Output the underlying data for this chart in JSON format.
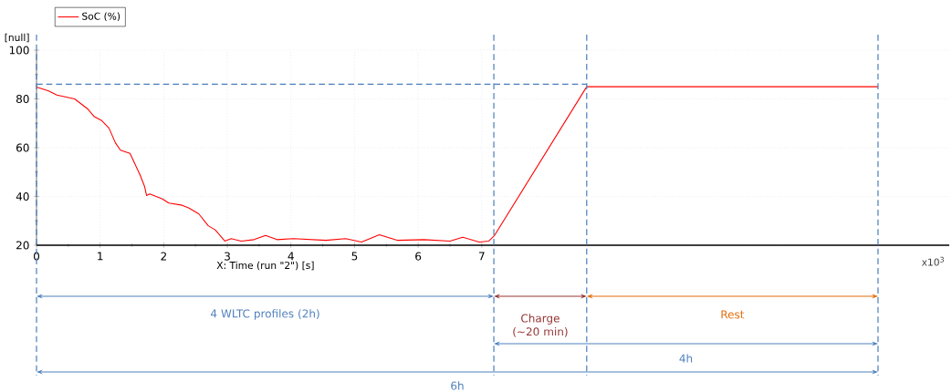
{
  "chart_data": {
    "type": "line",
    "xlabel": "X: Time (run \"2\") [s]",
    "ylabel": "[null]",
    "xlim": [
      0,
      14.35
    ],
    "ylim": [
      20,
      100
    ],
    "xticks": [
      0,
      1,
      2,
      3,
      4,
      5,
      6,
      7
    ],
    "yticks": [
      20,
      40,
      60,
      80,
      100
    ],
    "grid": true,
    "legend": "top left",
    "series": [
      {
        "name": "SoC (%)",
        "color": "#ff0000",
        "x": [
          0,
          0.19,
          0.32,
          0.6,
          0.8,
          0.91,
          1.03,
          1.14,
          1.24,
          1.32,
          1.47,
          1.63,
          1.7,
          1.73,
          1.78,
          1.98,
          2.08,
          2.29,
          2.39,
          2.55,
          2.7,
          2.81,
          2.96,
          3.06,
          3.22,
          3.42,
          3.6,
          3.78,
          4.04,
          4.55,
          4.86,
          5.11,
          5.39,
          5.68,
          6.09,
          6.5,
          6.7,
          6.96,
          7.11,
          7.2,
          8.65,
          13.23
        ],
        "values": [
          84.9,
          83.3,
          81.6,
          80,
          76,
          72.7,
          71,
          68,
          62,
          59,
          57.7,
          48.7,
          44,
          40.4,
          41,
          39,
          37.3,
          36.4,
          35.3,
          32.9,
          28,
          26.3,
          21.7,
          22.7,
          21.7,
          22.3,
          24,
          22.3,
          22.7,
          22,
          22.7,
          21.3,
          24.3,
          22,
          22.3,
          21.7,
          23.3,
          21.3,
          21.7,
          24,
          85,
          85
        ]
      }
    ],
    "ref_lines": [
      {
        "axis": "y",
        "value": 86,
        "color": "#4a7ebb",
        "line_style": "dashed"
      },
      {
        "axis": "x",
        "value": 0,
        "color": "#4a7ebb",
        "line_style": "dashed"
      },
      {
        "axis": "x",
        "value": 7.19,
        "color": "#4a7ebb",
        "line_style": "dashed"
      },
      {
        "axis": "x",
        "value": 8.65,
        "color": "#4a7ebb",
        "line_style": "dashed"
      },
      {
        "axis": "x",
        "value": 13.23,
        "color": "#4a7ebb",
        "line_style": "dashed"
      }
    ],
    "annotations": [
      "4 WLTC profiles (2h)",
      "Charge (~20 min)",
      "Rest",
      "4h",
      "6h",
      "x10$^{3}$"
    ]
  }
}
